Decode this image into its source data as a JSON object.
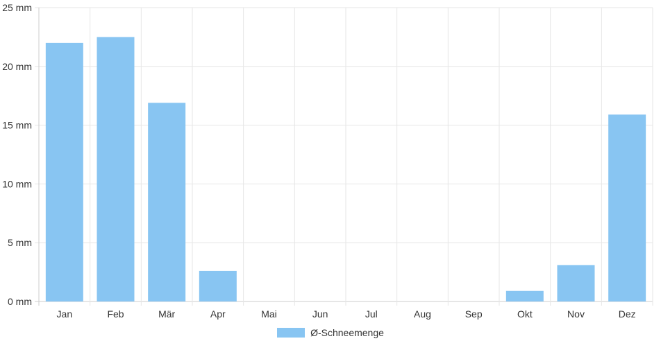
{
  "chart_data": {
    "type": "bar",
    "categories": [
      "Jan",
      "Feb",
      "Mär",
      "Apr",
      "Mai",
      "Jun",
      "Jul",
      "Aug",
      "Sep",
      "Okt",
      "Nov",
      "Dez"
    ],
    "series": [
      {
        "name": "Ø-Schneemenge",
        "values": [
          22.0,
          22.5,
          16.9,
          2.6,
          0,
          0,
          0,
          0,
          0,
          0.9,
          3.1,
          15.9
        ]
      }
    ],
    "y_ticks": [
      "0 mm",
      "5 mm",
      "10 mm",
      "15 mm",
      "20 mm",
      "25 mm"
    ],
    "ylim": [
      0,
      25
    ],
    "grid": true,
    "legend_position": "bottom",
    "bar_color": "#88c5f2",
    "grid_color": "#e6e6e6",
    "axis_color": "#cccccc"
  }
}
